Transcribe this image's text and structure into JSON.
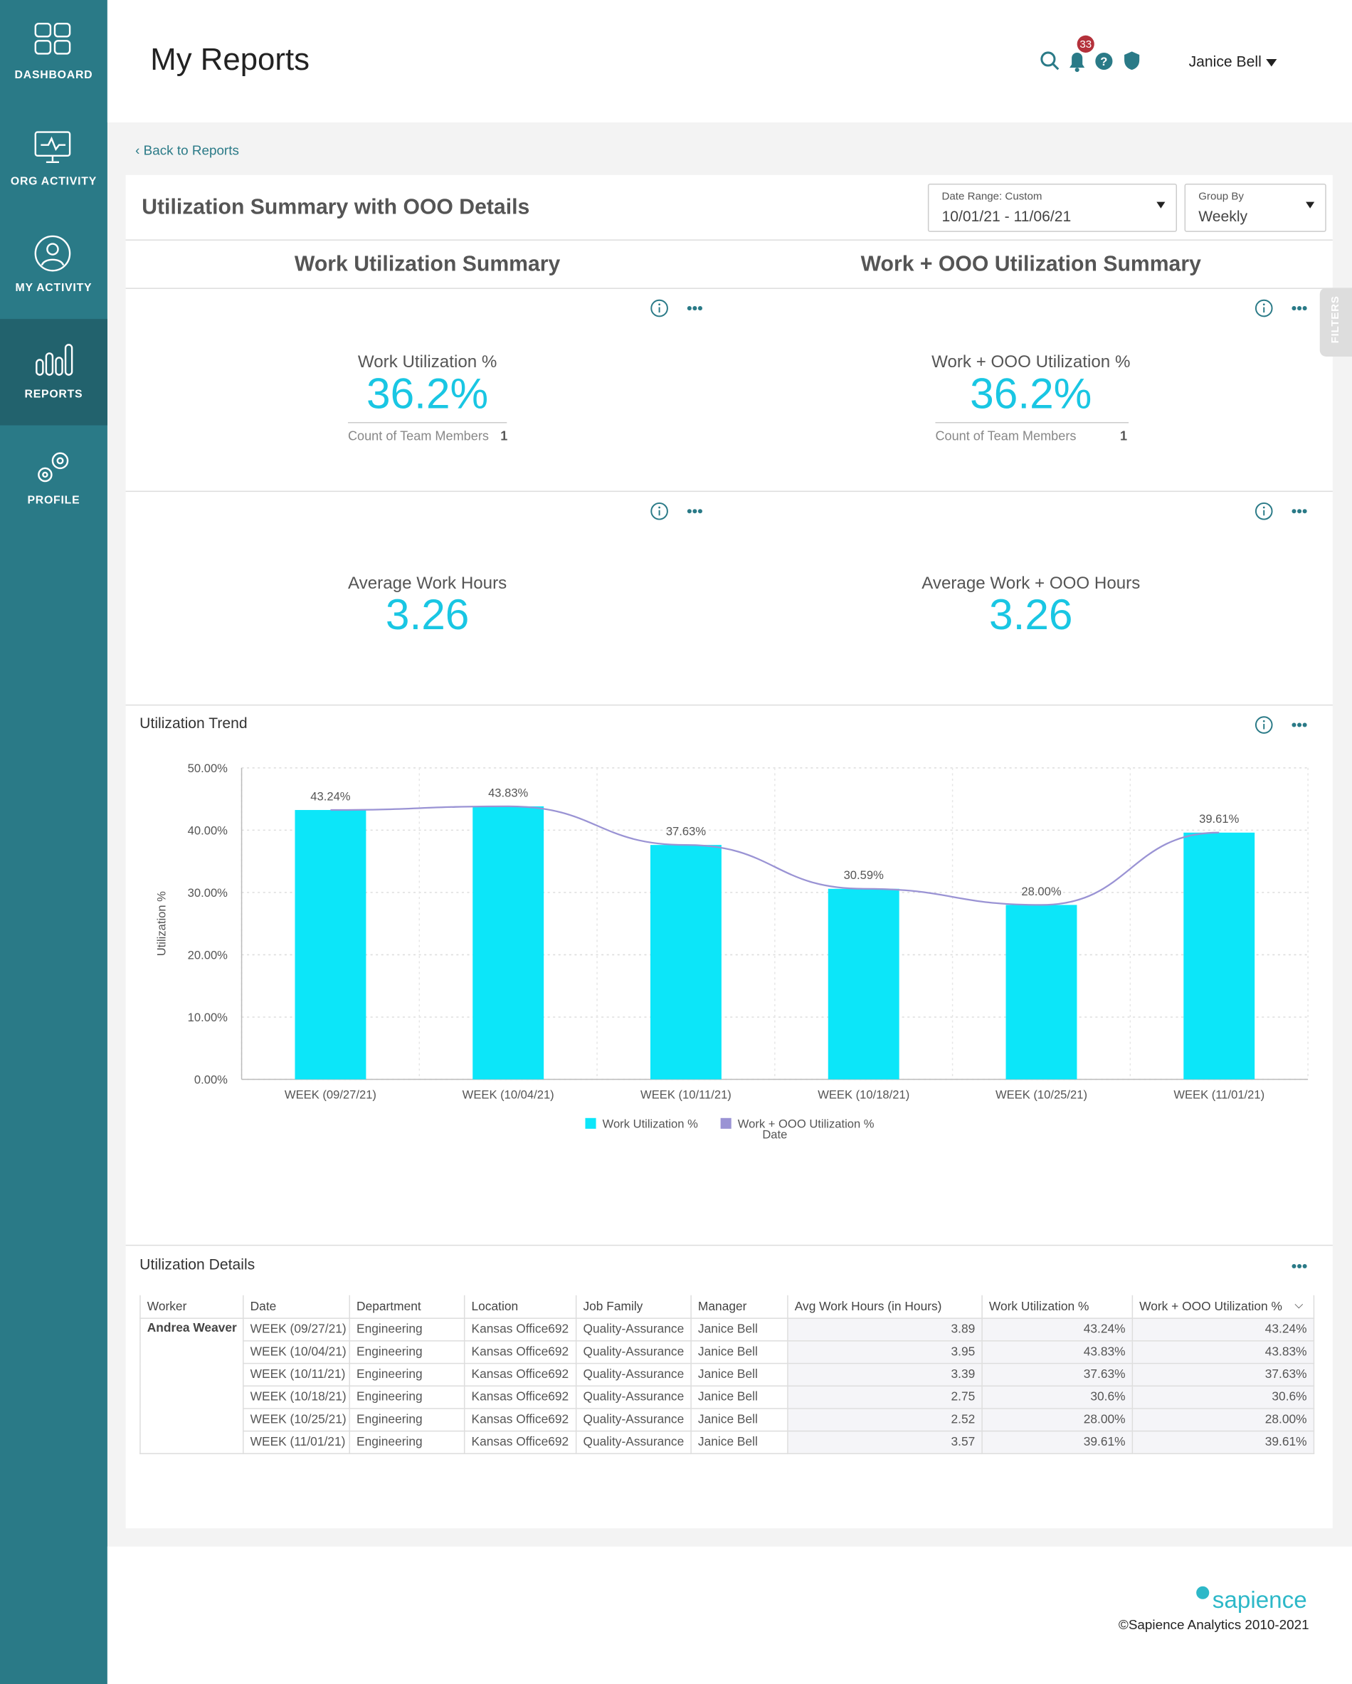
{
  "sidebar": {
    "items": [
      "DASHBOARD",
      "ORG ACTIVITY",
      "MY ACTIVITY",
      "REPORTS",
      "PROFILE"
    ]
  },
  "header": {
    "title": "My Reports",
    "notification_count": "33",
    "user": "Janice Bell"
  },
  "back_link": "Back to Reports",
  "report": {
    "title": "Utilization Summary with OOO Details",
    "date_range_label": "Date Range: Custom",
    "date_range": "10/01/21 - 11/06/21",
    "group_by_label": "Group By",
    "group_by": "Weekly",
    "filters_tab": "FILTERS"
  },
  "summaries": {
    "left": "Work Utilization Summary",
    "right": "Work + OOO Utilization Summary"
  },
  "kpis": [
    {
      "label": "Work Utilization %",
      "value": "36.2%",
      "count_label": "Count of Team Members",
      "count": "1"
    },
    {
      "label": "Work + OOO Utilization %",
      "value": "36.2%",
      "count_label": "Count of Team Members",
      "count": "1"
    },
    {
      "label": "Average Work Hours",
      "value": "3.26"
    },
    {
      "label": "Average Work + OOO Hours",
      "value": "3.26"
    }
  ],
  "chart_data": {
    "type": "bar",
    "title": "Utilization Trend",
    "x_label": "Date",
    "y_label": "Utilization %",
    "categories": [
      "WEEK (09/27/21)",
      "WEEK (10/04/21)",
      "WEEK (10/11/21)",
      "WEEK (10/18/21)",
      "WEEK (10/25/21)",
      "WEEK (11/01/21)"
    ],
    "series": [
      {
        "name": "Work Utilization %",
        "color": "#0ce6f9",
        "values": [
          43.24,
          43.83,
          37.63,
          30.59,
          28.0,
          39.61
        ],
        "value_labels": [
          "43.24%",
          "43.83%",
          "37.63%",
          "30.59%",
          "28.00%",
          "39.61%"
        ]
      },
      {
        "name": "Work + OOO Utilization %",
        "color": "#9a93d4",
        "values": [
          43.24,
          43.83,
          37.63,
          30.59,
          28.0,
          39.61
        ]
      }
    ],
    "ylim": [
      0,
      50
    ],
    "yticks": [
      {
        "value": 0,
        "label": "0.00%"
      },
      {
        "value": 10,
        "label": "10.00%"
      },
      {
        "value": 20,
        "label": "20.00%"
      },
      {
        "value": 30,
        "label": "30.00%"
      },
      {
        "value": 40,
        "label": "40.00%"
      },
      {
        "value": 50,
        "label": "50.00%"
      }
    ],
    "grid": true
  },
  "details": {
    "title": "Utilization Details",
    "columns": [
      "Worker",
      "Date",
      "Department",
      "Location",
      "Job Family",
      "Manager",
      "Avg Work Hours (in Hours)",
      "Work Utilization %",
      "Work + OOO Utilization %"
    ],
    "worker": "Andrea Weaver",
    "rows": [
      [
        "WEEK (09/27/21)",
        "Engineering",
        "Kansas Office692",
        "Quality-Assurance",
        "Janice Bell",
        "3.89",
        "43.24%",
        "43.24%"
      ],
      [
        "WEEK (10/04/21)",
        "Engineering",
        "Kansas Office692",
        "Quality-Assurance",
        "Janice Bell",
        "3.95",
        "43.83%",
        "43.83%"
      ],
      [
        "WEEK (10/11/21)",
        "Engineering",
        "Kansas Office692",
        "Quality-Assurance",
        "Janice Bell",
        "3.39",
        "37.63%",
        "37.63%"
      ],
      [
        "WEEK (10/18/21)",
        "Engineering",
        "Kansas Office692",
        "Quality-Assurance",
        "Janice Bell",
        "2.75",
        "30.6%",
        "30.6%"
      ],
      [
        "WEEK (10/25/21)",
        "Engineering",
        "Kansas Office692",
        "Quality-Assurance",
        "Janice Bell",
        "2.52",
        "28.00%",
        "28.00%"
      ],
      [
        "WEEK (11/01/21)",
        "Engineering",
        "Kansas Office692",
        "Quality-Assurance",
        "Janice Bell",
        "3.57",
        "39.61%",
        "39.61%"
      ]
    ]
  },
  "footer": {
    "brand": "sapience",
    "copyright": "©Sapience Analytics 2010-2021"
  }
}
